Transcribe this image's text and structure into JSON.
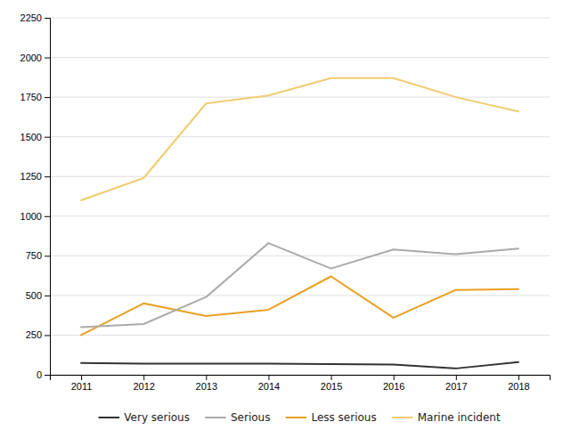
{
  "chart_data": {
    "type": "line",
    "x": [
      2011,
      2012,
      2013,
      2014,
      2015,
      2016,
      2017,
      2018
    ],
    "series": [
      {
        "name": "Very serious",
        "color": "#333333",
        "values": [
          75,
          70,
          70,
          70,
          68,
          65,
          40,
          80
        ]
      },
      {
        "name": "Serious",
        "color": "#aaaaaa",
        "values": [
          300,
          320,
          490,
          830,
          670,
          790,
          760,
          795
        ]
      },
      {
        "name": "Less serious",
        "color": "#e8a020",
        "values": [
          250,
          450,
          370,
          410,
          620,
          360,
          535,
          540
        ]
      },
      {
        "name": "Marine incident",
        "color": "#f0cc70",
        "values": [
          1100,
          1240,
          1710,
          1760,
          1870,
          1870,
          1750,
          1660
        ]
      }
    ],
    "xlim": [
      2010.5,
      2018.5
    ],
    "xticks": [
      2011,
      2012,
      2013,
      2014,
      2015,
      2016,
      2017,
      2018
    ],
    "ylim": [
      0,
      2250
    ],
    "yticks": [
      0,
      250,
      500,
      750,
      1000,
      1250,
      1500,
      1750,
      2000,
      2250
    ],
    "grid": true,
    "legend": "bottom"
  }
}
